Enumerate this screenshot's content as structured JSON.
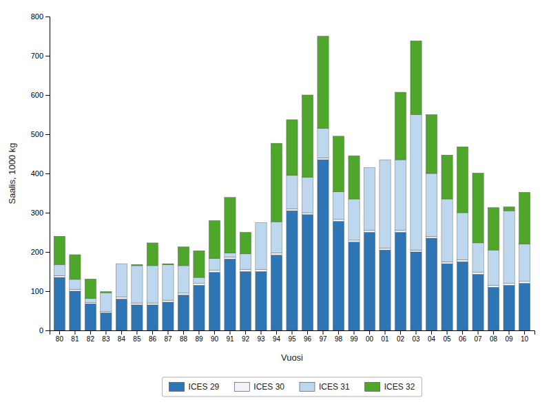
{
  "chart_data": {
    "type": "bar",
    "stacked": true,
    "categories": [
      "80",
      "81",
      "82",
      "83",
      "84",
      "85",
      "86",
      "87",
      "88",
      "89",
      "90",
      "91",
      "92",
      "93",
      "94",
      "95",
      "96",
      "97",
      "98",
      "99",
      "00",
      "01",
      "02",
      "03",
      "04",
      "05",
      "06",
      "07",
      "08",
      "09",
      "10"
    ],
    "series": [
      {
        "name": "ICES 29",
        "color": "#2E75B6",
        "values": [
          135,
          100,
          68,
          45,
          80,
          65,
          65,
          72,
          90,
          115,
          148,
          182,
          150,
          150,
          192,
          305,
          295,
          435,
          278,
          225,
          250,
          205,
          250,
          200,
          235,
          170,
          175,
          143,
          110,
          115,
          120
        ]
      },
      {
        "name": "ICES 30",
        "color": "#EEF4FA",
        "values": [
          5,
          5,
          3,
          3,
          5,
          5,
          5,
          5,
          5,
          5,
          5,
          5,
          5,
          5,
          5,
          5,
          5,
          5,
          5,
          5,
          5,
          5,
          5,
          5,
          5,
          5,
          5,
          5,
          5,
          5,
          5
        ]
      },
      {
        "name": "ICES 31",
        "color": "#BDD7EE",
        "values": [
          28,
          25,
          10,
          48,
          85,
          95,
          95,
          90,
          70,
          15,
          30,
          10,
          40,
          120,
          80,
          85,
          90,
          75,
          70,
          105,
          160,
          225,
          180,
          345,
          160,
          160,
          120,
          75,
          90,
          185,
          95
        ]
      },
      {
        "name": "ICES 32",
        "color": "#4EA72A",
        "values": [
          72,
          63,
          50,
          3,
          0,
          3,
          58,
          3,
          48,
          68,
          97,
          142,
          55,
          0,
          200,
          142,
          210,
          235,
          142,
          110,
          0,
          0,
          172,
          188,
          150,
          112,
          168,
          178,
          108,
          10,
          132
        ]
      }
    ],
    "xlabel": "Vuosi",
    "ylabel": "Saalis, 1000 kg",
    "ylim": [
      0,
      800
    ],
    "yticks": [
      0,
      100,
      200,
      300,
      400,
      500,
      600,
      700,
      800
    ],
    "grid": false,
    "legend": "bottom"
  }
}
